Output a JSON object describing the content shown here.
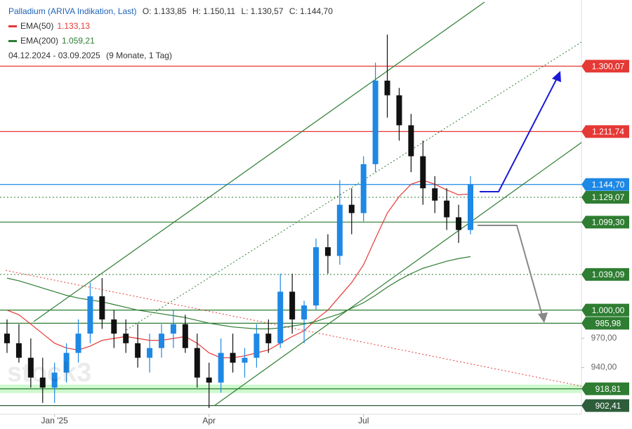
{
  "chart_data": {
    "type": "candlestick",
    "title": "Palladium (ARIVA Indikation, Last)",
    "ohlc_labels": [
      "O: 1.133,85",
      "H: 1.150,11",
      "L: 1.130,57",
      "C: 1.144,70"
    ],
    "date_range": "04.12.2024 - 03.09.2025",
    "period": "(9 Monate, 1 Tag)",
    "watermark": "stock3",
    "categories": [
      null,
      null,
      null,
      null,
      "Jan '25",
      null,
      null,
      null,
      null,
      null,
      null,
      null,
      null,
      null,
      null,
      null,
      null,
      "Apr",
      null,
      null,
      null,
      null,
      null,
      null,
      null,
      null,
      null,
      null,
      null,
      null,
      "Jul",
      null,
      null,
      null,
      null,
      null,
      null,
      null,
      null,
      null
    ],
    "open": [
      975,
      965,
      950,
      930,
      920,
      935,
      955,
      975,
      1015,
      990,
      975,
      965,
      950,
      960,
      975,
      985,
      960,
      930,
      925,
      955,
      945,
      950,
      975,
      965,
      1020,
      990,
      1005,
      1070,
      1060,
      1120,
      1110,
      1170,
      1280,
      1260,
      1220,
      1180,
      1140,
      1125,
      1105,
      1090
    ],
    "high": [
      990,
      985,
      970,
      950,
      945,
      965,
      990,
      1030,
      1035,
      1000,
      990,
      985,
      975,
      985,
      1000,
      995,
      975,
      945,
      970,
      975,
      960,
      985,
      990,
      1040,
      1040,
      1010,
      1080,
      1085,
      1150,
      1140,
      1180,
      1305,
      1345,
      1270,
      1235,
      1200,
      1155,
      1140,
      1120,
      1155
    ],
    "low": [
      955,
      945,
      920,
      905,
      905,
      925,
      945,
      965,
      980,
      960,
      955,
      940,
      935,
      950,
      960,
      955,
      920,
      900,
      915,
      935,
      930,
      940,
      955,
      960,
      975,
      965,
      1000,
      1040,
      1050,
      1085,
      1100,
      1160,
      1230,
      1200,
      1160,
      1120,
      1110,
      1090,
      1075,
      1085
    ],
    "close": [
      965,
      950,
      930,
      920,
      935,
      955,
      975,
      1015,
      990,
      975,
      965,
      950,
      960,
      975,
      985,
      960,
      930,
      925,
      955,
      945,
      950,
      975,
      965,
      1020,
      990,
      1005,
      1070,
      1060,
      1120,
      1110,
      1170,
      1280,
      1260,
      1220,
      1180,
      1140,
      1125,
      1105,
      1090,
      1145
    ],
    "up_color": "#1e88e5",
    "down_color": "#111111",
    "series": [
      {
        "name": "EMA(50)",
        "value_label": "1.133,13",
        "color": "#e53935",
        "values": [
          1000,
          995,
          985,
          975,
          965,
          960,
          958,
          962,
          968,
          970,
          972,
          970,
          968,
          968,
          970,
          972,
          965,
          955,
          950,
          950,
          952,
          955,
          958,
          965,
          972,
          978,
          990,
          1000,
          1015,
          1030,
          1050,
          1080,
          1110,
          1130,
          1145,
          1150,
          1145,
          1138,
          1132,
          1133.13
        ]
      },
      {
        "name": "EMA(200)",
        "value_label": "1.059,21",
        "color": "#2e7d32",
        "values": [
          1035,
          1032,
          1028,
          1024,
          1020,
          1016,
          1013,
          1011,
          1009,
          1006,
          1003,
          1000,
          998,
          996,
          994,
          992,
          989,
          986,
          984,
          982,
          981,
          980,
          980,
          981,
          983,
          985,
          988,
          992,
          996,
          1002,
          1008,
          1016,
          1025,
          1033,
          1040,
          1046,
          1050,
          1054,
          1057,
          1059.21
        ]
      }
    ],
    "levels": [
      {
        "value": 1300.07,
        "label": "1.300,07",
        "color": "#e53935",
        "dash": false
      },
      {
        "value": 1211.74,
        "label": "1.211,74",
        "color": "#e53935",
        "dash": false
      },
      {
        "value": 1144.7,
        "label": "1.144,70",
        "color": "#1e88e5",
        "dash": false
      },
      {
        "value": 1129.07,
        "label": "1.129,07",
        "color": "#2e7d32",
        "dash": true
      },
      {
        "value": 1099.3,
        "label": "1.099,30",
        "color": "#2e7d32",
        "dash": false
      },
      {
        "value": 1039.09,
        "label": "1.039,09",
        "color": "#2e7d32",
        "dash": true
      },
      {
        "value": 1000.0,
        "label": "1.000,00",
        "color": "#2e7d32",
        "dash": false
      },
      {
        "value": 985.98,
        "label": "985,98",
        "color": "#2e7d32",
        "dash": false
      },
      {
        "value": 918.81,
        "label": "918,81",
        "color": "#2e7d32",
        "dash": false
      },
      {
        "value": 902.41,
        "label": "902,41",
        "color": "#2e5d3a",
        "dash": false
      }
    ],
    "ylim": [
      894,
      1396
    ],
    "log_scale": true,
    "yticks": [
      {
        "value": 940,
        "label": "940,00"
      },
      {
        "value": 970,
        "label": "970,00"
      }
    ]
  }
}
